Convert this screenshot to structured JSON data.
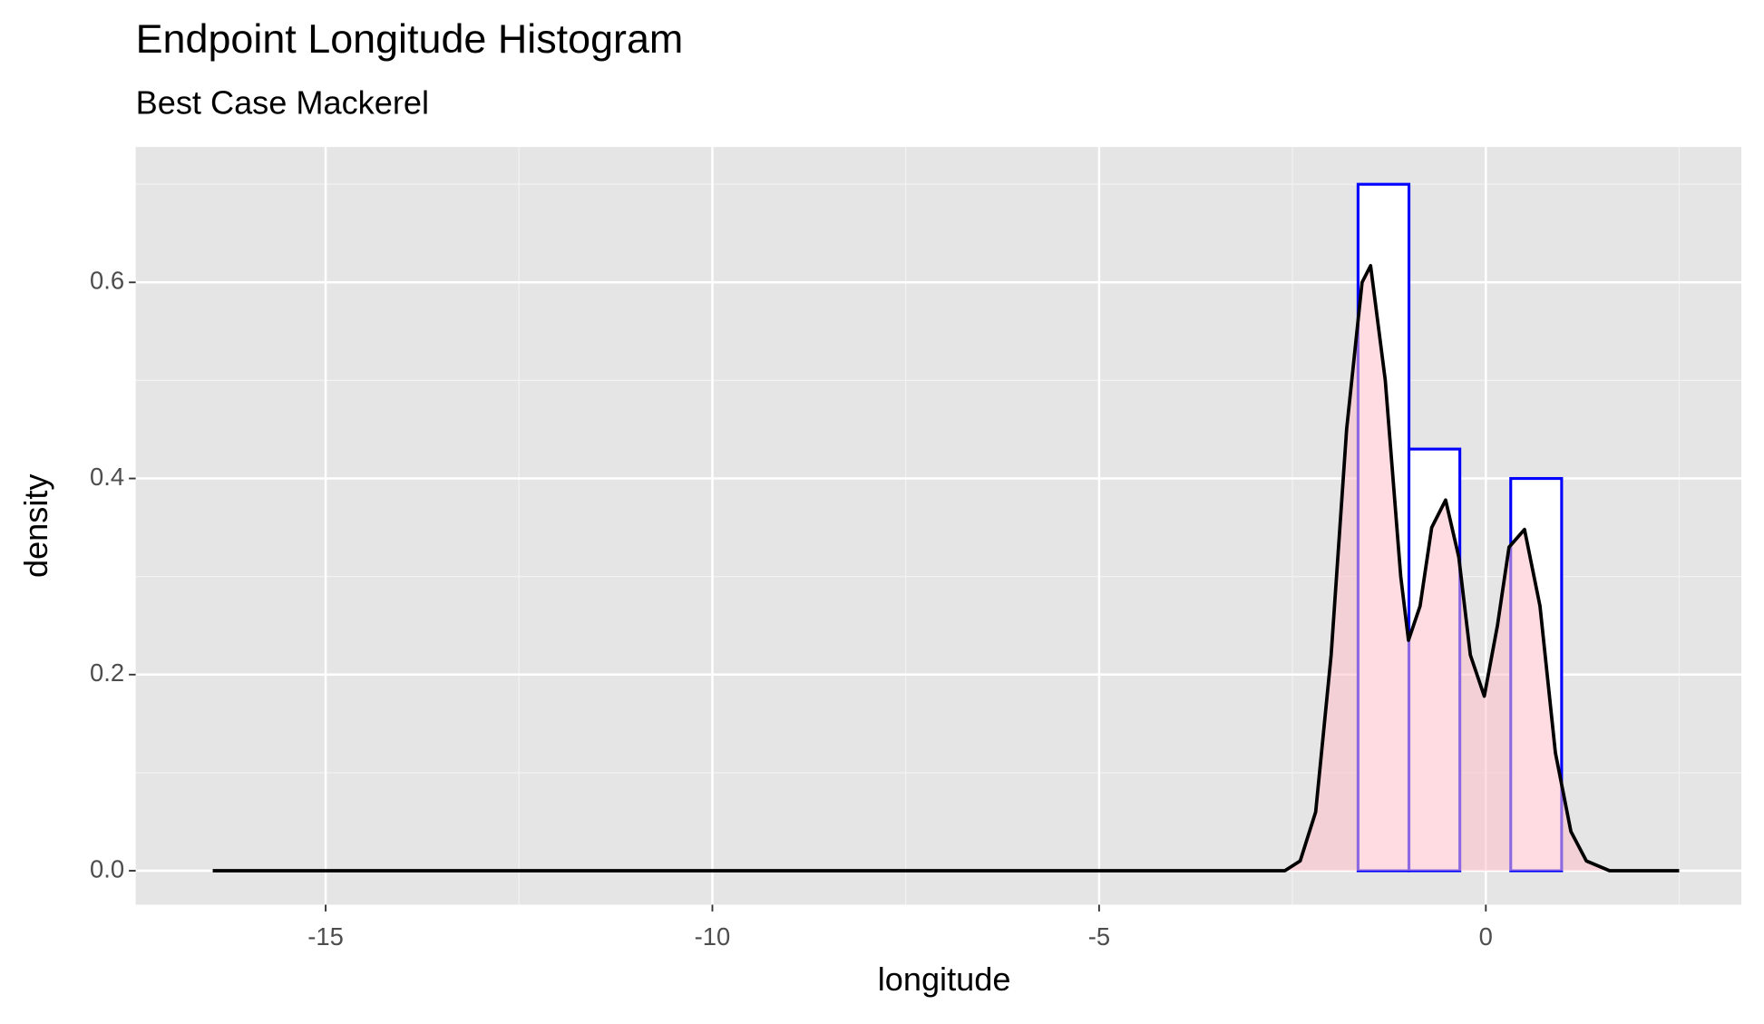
{
  "chart_data": {
    "type": "histogram",
    "title": "Endpoint Longitude Histogram",
    "subtitle": "Best Case Mackerel",
    "x_label": "longitude",
    "y_label": "density",
    "bins": [
      -2.31,
      -1.652,
      -0.994,
      -0.336,
      0.322,
      0.98,
      1.638
    ],
    "values": [
      0,
      0.7,
      0.43,
      0,
      0.4,
      0
    ],
    "bar_color": "#0000ff",
    "bar_fill": "#ffffff",
    "density": {
      "color": "#000000",
      "fill": "#ffc0cb",
      "x": [
        -16.46,
        -3,
        -2.6,
        -2.4,
        -2.2,
        -2.0,
        -1.8,
        -1.6,
        -1.49,
        -1.3,
        -1.1,
        -1.0,
        -0.85,
        -0.7,
        -0.52,
        -0.35,
        -0.2,
        -0.02,
        0.15,
        0.3,
        0.5,
        0.7,
        0.9,
        1.1,
        1.3,
        1.6,
        2.5
      ],
      "values": [
        0,
        0,
        0,
        0.01,
        0.06,
        0.22,
        0.45,
        0.6,
        0.617,
        0.5,
        0.3,
        0.235,
        0.27,
        0.35,
        0.378,
        0.32,
        0.22,
        0.178,
        0.25,
        0.33,
        0.348,
        0.27,
        0.12,
        0.04,
        0.01,
        0,
        0
      ]
    },
    "xlim": [
      -17.456,
      3.304
    ],
    "ylim": [
      -0.0346,
      0.738
    ],
    "xticks": [
      -15,
      -10,
      -5,
      0
    ],
    "yticks": [
      {
        "value": 0,
        "label": "0.0"
      },
      0.2,
      0.4,
      0.6
    ],
    "grid": true
  }
}
